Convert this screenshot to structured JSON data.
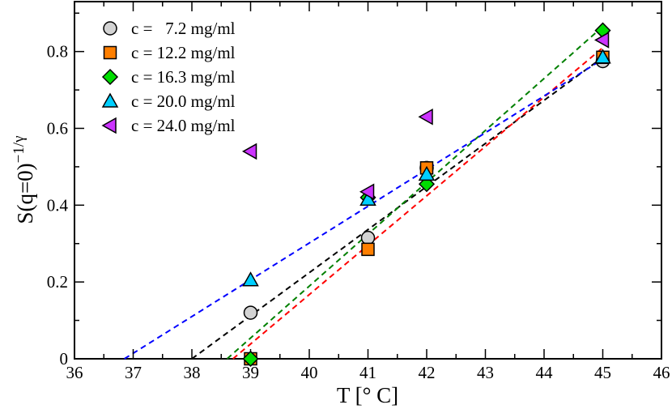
{
  "chart_data": {
    "type": "scatter",
    "title": "",
    "xlabel": "T [° C]",
    "ylabel": "S(q=0)^(-1/γ)",
    "xlim": [
      36,
      46
    ],
    "ylim": [
      0,
      0.93
    ],
    "x_ticks": [
      36,
      37,
      38,
      39,
      40,
      41,
      42,
      43,
      44,
      45,
      46
    ],
    "y_ticks": [
      0,
      0.2,
      0.4,
      0.6,
      0.8
    ],
    "x_tick_labels": [
      "36",
      "37",
      "38",
      "39",
      "40",
      "41",
      "42",
      "43",
      "44",
      "45",
      "46"
    ],
    "y_tick_labels": [
      "0",
      "0.2",
      "0.4",
      "0.6",
      "0.8"
    ],
    "legend_position": "top-left",
    "series": [
      {
        "name": "c =   7.2 mg/ml",
        "marker": "circle",
        "color": "#d3d3d3",
        "line_color": "#000000",
        "x": [
          39,
          41,
          42,
          45
        ],
        "y": [
          0.12,
          0.315,
          0.497,
          0.775
        ],
        "fit": {
          "x": [
            38,
            45
          ],
          "y": [
            0,
            0.785
          ]
        }
      },
      {
        "name": "c = 12.2 mg/ml",
        "marker": "square",
        "color": "#ff7f00",
        "line_color": "#ff0000",
        "x": [
          39,
          41,
          42,
          45
        ],
        "y": [
          0.0,
          0.285,
          0.497,
          0.785
        ],
        "fit": {
          "x": [
            38.7,
            45
          ],
          "y": [
            0,
            0.81
          ]
        }
      },
      {
        "name": "c = 16.3 mg/ml",
        "marker": "diamond",
        "color": "#00dd00",
        "line_color": "#008000",
        "x": [
          39,
          41,
          42,
          45
        ],
        "y": [
          0.0,
          0.42,
          0.455,
          0.855
        ],
        "fit": {
          "x": [
            38.6,
            45
          ],
          "y": [
            0,
            0.865
          ]
        }
      },
      {
        "name": "c = 20.0 mg/ml",
        "marker": "triangle-up",
        "color": "#00cfff",
        "line_color": "#0000ff",
        "x": [
          39,
          41,
          42,
          45
        ],
        "y": [
          0.205,
          0.415,
          0.48,
          0.785
        ],
        "fit": {
          "x": [
            36.85,
            45
          ],
          "y": [
            0,
            0.78
          ]
        }
      },
      {
        "name": "c = 24.0 mg/ml",
        "marker": "triangle-left",
        "color": "#cc33ff",
        "line_color": "",
        "x": [
          39,
          41,
          42,
          45
        ],
        "y": [
          0.54,
          0.435,
          0.63,
          0.83
        ]
      }
    ]
  }
}
